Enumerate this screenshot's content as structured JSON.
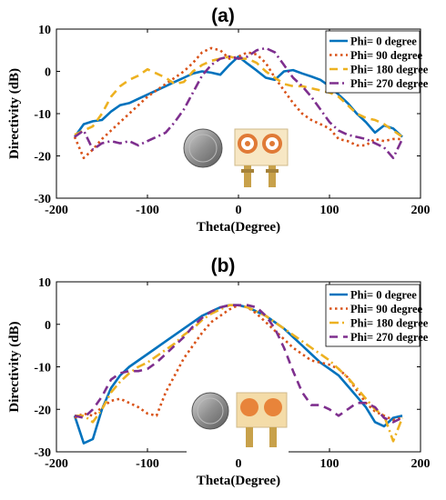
{
  "chart_data": [
    {
      "type": "line",
      "panel_label": "(a)",
      "title": "",
      "xlabel": "Theta(Degree)",
      "ylabel": "Directivity (dB)",
      "xlim": [
        -200,
        200
      ],
      "ylim": [
        -30,
        10
      ],
      "xticks": [
        -200,
        -100,
        0,
        100,
        200
      ],
      "yticks": [
        10,
        0,
        -10,
        -20,
        -30
      ],
      "grid": false,
      "legend_position": "top-right",
      "inset": "photo of antenna prototypes beside a coin",
      "series": [
        {
          "name": "Phi= 0 degree",
          "color": "#0072BD",
          "dash": "solid",
          "x": [
            -180,
            -170,
            -160,
            -150,
            -140,
            -130,
            -120,
            -110,
            -100,
            -90,
            -80,
            -70,
            -60,
            -50,
            -40,
            -30,
            -20,
            -10,
            0,
            10,
            20,
            30,
            40,
            50,
            60,
            70,
            80,
            90,
            100,
            110,
            120,
            130,
            140,
            150,
            160,
            170,
            180
          ],
          "y": [
            -15.5,
            -12.5,
            -11.8,
            -11.5,
            -9.5,
            -8,
            -7.5,
            -6.5,
            -5.5,
            -4.5,
            -3.5,
            -2.5,
            -1.5,
            -0.5,
            0,
            -0.3,
            -0.8,
            1.5,
            3.5,
            1.8,
            0.2,
            -1.5,
            -2,
            0,
            0.3,
            -0.5,
            -1.2,
            -2,
            -3.5,
            -5.5,
            -7.5,
            -10,
            -12,
            -14.5,
            -12.8,
            -13.5,
            -15.5
          ]
        },
        {
          "name": "Phi= 90 degree",
          "color": "#D95319",
          "dash": "dot",
          "x": [
            -180,
            -170,
            -160,
            -150,
            -140,
            -130,
            -120,
            -110,
            -100,
            -90,
            -80,
            -70,
            -60,
            -50,
            -40,
            -30,
            -20,
            -10,
            0,
            10,
            20,
            30,
            40,
            50,
            60,
            70,
            80,
            90,
            100,
            110,
            120,
            130,
            140,
            150,
            160,
            170,
            180
          ],
          "y": [
            -15.5,
            -20.5,
            -18.5,
            -16,
            -14,
            -12,
            -10,
            -8,
            -6,
            -4.5,
            -3,
            -1.5,
            0,
            2,
            4.5,
            5.5,
            5,
            3,
            3.5,
            4.5,
            4,
            2,
            -1.5,
            -4.5,
            -7.5,
            -10,
            -11.5,
            -12.5,
            -13.5,
            -16,
            -16.5,
            -17.5,
            -17.5,
            -16,
            -16.5,
            -16,
            -16
          ]
        },
        {
          "name": "Phi= 180 degree",
          "color": "#EDB120",
          "dash": "dash",
          "x": [
            -180,
            -170,
            -160,
            -150,
            -140,
            -130,
            -120,
            -110,
            -100,
            -90,
            -80,
            -70,
            -60,
            -50,
            -40,
            -30,
            -20,
            -10,
            0,
            10,
            20,
            30,
            40,
            50,
            60,
            70,
            80,
            90,
            100,
            110,
            120,
            130,
            140,
            150,
            160,
            170,
            180
          ],
          "y": [
            -15,
            -14,
            -13,
            -10,
            -6,
            -3.5,
            -2,
            -1,
            0.5,
            -0.5,
            -1.5,
            -3,
            -2.5,
            0,
            1.5,
            2.5,
            3,
            3.5,
            3,
            3,
            2,
            0,
            -1.5,
            -3,
            -3.5,
            -3.5,
            -4,
            -4.5,
            -5,
            -6,
            -8,
            -10,
            -11,
            -11.5,
            -12.5,
            -14,
            -15.5
          ]
        },
        {
          "name": "Phi= 270 degree",
          "color": "#7E2F8E",
          "dash": "dashdot",
          "x": [
            -180,
            -170,
            -160,
            -150,
            -140,
            -130,
            -120,
            -110,
            -100,
            -90,
            -80,
            -70,
            -60,
            -50,
            -40,
            -30,
            -20,
            -10,
            0,
            10,
            20,
            30,
            40,
            50,
            60,
            70,
            80,
            90,
            100,
            110,
            120,
            130,
            140,
            150,
            160,
            170,
            180
          ],
          "y": [
            -15.5,
            -14,
            -18.5,
            -17,
            -16.5,
            -17,
            -16.5,
            -17.5,
            -16.5,
            -15.5,
            -14.5,
            -12,
            -9,
            -5,
            -1,
            1.5,
            3,
            3.5,
            3,
            3.5,
            5,
            5.5,
            4.5,
            1.5,
            -1.5,
            -3.5,
            -6,
            -9,
            -12,
            -14,
            -15,
            -15.5,
            -16,
            -17,
            -18,
            -20.5,
            -16
          ]
        }
      ]
    },
    {
      "type": "line",
      "panel_label": "(b)",
      "title": "",
      "xlabel": "Theta(Degree)",
      "ylabel": "Directivity (dB)",
      "xlim": [
        -200,
        200
      ],
      "ylim": [
        -30,
        10
      ],
      "xticks": [
        -200,
        -100,
        0,
        100,
        200
      ],
      "yticks": [
        10,
        0,
        -10,
        -20,
        -30
      ],
      "grid": false,
      "legend_position": "top-right",
      "inset": "photo of antenna prototypes beside a coin",
      "series": [
        {
          "name": "Phi= 0 degree",
          "color": "#0072BD",
          "dash": "solid",
          "x": [
            -180,
            -170,
            -160,
            -150,
            -140,
            -130,
            -120,
            -110,
            -100,
            -90,
            -80,
            -70,
            -60,
            -50,
            -40,
            -30,
            -20,
            -10,
            0,
            10,
            20,
            30,
            40,
            50,
            60,
            70,
            80,
            90,
            100,
            110,
            120,
            130,
            140,
            150,
            160,
            170,
            180
          ],
          "y": [
            -21.5,
            -28,
            -27,
            -20,
            -15,
            -12,
            -10,
            -8.5,
            -7,
            -5.5,
            -4,
            -2.5,
            -1,
            0.5,
            2,
            3,
            4,
            4.5,
            4.5,
            4,
            3,
            2,
            0.5,
            -1,
            -3,
            -5,
            -7,
            -9,
            -10.5,
            -12,
            -14.5,
            -17,
            -19.5,
            -23,
            -24,
            -22,
            -21.5
          ]
        },
        {
          "name": "Phi= 90 degree",
          "color": "#D95319",
          "dash": "dot",
          "x": [
            -180,
            -170,
            -160,
            -150,
            -140,
            -130,
            -120,
            -110,
            -100,
            -90,
            -80,
            -70,
            -60,
            -50,
            -40,
            -30,
            -20,
            -10,
            0,
            10,
            20,
            30,
            40,
            50,
            60,
            70,
            80,
            90,
            100,
            110,
            120,
            130,
            140,
            150,
            160,
            170,
            180
          ],
          "y": [
            -22,
            -21,
            -21.5,
            -19.5,
            -18,
            -17.5,
            -18.5,
            -19.5,
            -21,
            -21.5,
            -16,
            -12,
            -8,
            -5,
            -2,
            0.5,
            2,
            3.5,
            4.5,
            4,
            2.5,
            0.5,
            -1.5,
            -3.5,
            -5.5,
            -7,
            -8.5,
            -9,
            -9.5,
            -10.5,
            -12.5,
            -15.5,
            -18.5,
            -20.5,
            -21.5,
            -22.5,
            -22
          ]
        },
        {
          "name": "Phi= 180 degree",
          "color": "#EDB120",
          "dash": "dashdot",
          "x": [
            -180,
            -170,
            -160,
            -150,
            -140,
            -130,
            -120,
            -110,
            -100,
            -90,
            -80,
            -70,
            -60,
            -50,
            -40,
            -30,
            -20,
            -10,
            0,
            10,
            20,
            30,
            40,
            50,
            60,
            70,
            80,
            90,
            100,
            110,
            120,
            130,
            140,
            150,
            160,
            170,
            180
          ],
          "y": [
            -21.5,
            -21.5,
            -23,
            -20,
            -16,
            -13.5,
            -11.5,
            -10,
            -9,
            -7.5,
            -6,
            -4.5,
            -2.5,
            -1,
            1,
            2.5,
            3.5,
            4.5,
            4.5,
            4,
            3,
            2,
            0.5,
            -1,
            -2.5,
            -4,
            -5.5,
            -7,
            -8.5,
            -10.5,
            -12.5,
            -15,
            -17.5,
            -20,
            -21.5,
            -27.5,
            -22
          ]
        },
        {
          "name": "Phi= 270 degree",
          "color": "#7E2F8E",
          "dash": "dash",
          "x": [
            -180,
            -170,
            -160,
            -150,
            -140,
            -130,
            -120,
            -110,
            -100,
            -90,
            -80,
            -70,
            -60,
            -50,
            -40,
            -30,
            -20,
            -10,
            0,
            10,
            20,
            30,
            40,
            50,
            60,
            70,
            80,
            90,
            100,
            110,
            120,
            130,
            140,
            150,
            160,
            170,
            180
          ],
          "y": [
            -21.5,
            -22,
            -20,
            -17,
            -13,
            -11.5,
            -11,
            -11,
            -10.5,
            -9,
            -7,
            -5,
            -3,
            -0.5,
            1.5,
            3,
            4,
            4.5,
            4.5,
            4.5,
            4,
            2,
            -1,
            -5.5,
            -11,
            -16,
            -19,
            -19,
            -20,
            -21.5,
            -20,
            -18.5,
            -18.5,
            -19.5,
            -22,
            -23,
            -22
          ]
        }
      ]
    }
  ]
}
